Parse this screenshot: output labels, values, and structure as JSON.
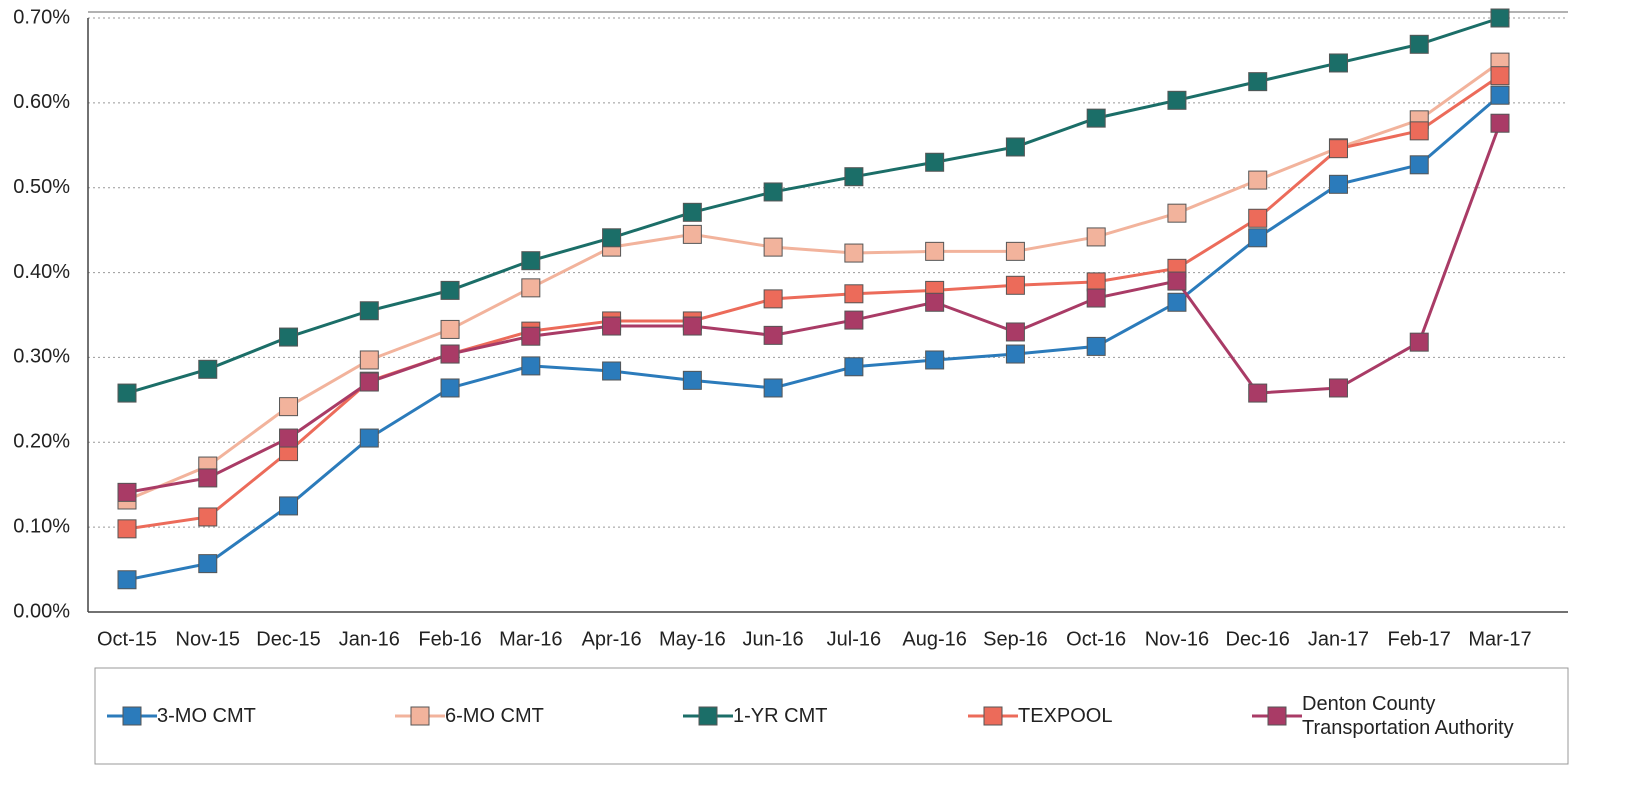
{
  "chart_data": {
    "type": "line",
    "categories": [
      "Oct-15",
      "Nov-15",
      "Dec-15",
      "Jan-16",
      "Feb-16",
      "Mar-16",
      "Apr-16",
      "May-16",
      "Jun-16",
      "Jul-16",
      "Aug-16",
      "Sep-16",
      "Oct-16",
      "Nov-16",
      "Dec-16",
      "Jan-17",
      "Feb-17",
      "Mar-17"
    ],
    "ylim": [
      0,
      0.7
    ],
    "yticks": [
      {
        "value": 0,
        "label": "0.00%"
      },
      {
        "value": 0.1,
        "label": "0.10%"
      },
      {
        "value": 0.2,
        "label": "0.20%"
      },
      {
        "value": 0.3,
        "label": "0.30%"
      },
      {
        "value": 0.4,
        "label": "0.40%"
      },
      {
        "value": 0.5,
        "label": "0.50%"
      },
      {
        "value": 0.6,
        "label": "0.60%"
      },
      {
        "value": 0.7,
        "label": "0.70%"
      }
    ],
    "grid": true,
    "legend": "bottom",
    "series": [
      {
        "name": "3-MO CMT",
        "color": "#2b7bbb",
        "values": [
          0.038,
          0.057,
          0.125,
          0.205,
          0.264,
          0.29,
          0.284,
          0.273,
          0.264,
          0.289,
          0.297,
          0.304,
          0.313,
          0.365,
          0.441,
          0.504,
          0.527,
          0.609
        ]
      },
      {
        "name": "6-MO CMT",
        "color": "#f2b39c",
        "values": [
          0.132,
          0.172,
          0.242,
          0.297,
          0.333,
          0.382,
          0.43,
          0.445,
          0.43,
          0.423,
          0.425,
          0.425,
          0.442,
          0.47,
          0.509,
          0.547,
          0.58,
          0.648
        ]
      },
      {
        "name": "1-YR CMT",
        "color": "#1b6e68",
        "values": [
          0.258,
          0.286,
          0.324,
          0.355,
          0.379,
          0.414,
          0.441,
          0.471,
          0.495,
          0.513,
          0.53,
          0.548,
          0.582,
          0.603,
          0.625,
          0.647,
          0.669,
          0.7
        ]
      },
      {
        "name": "TEXPOOL",
        "color": "#ec6b5a",
        "values": [
          0.098,
          0.112,
          0.189,
          0.272,
          0.304,
          0.331,
          0.343,
          0.343,
          0.369,
          0.375,
          0.379,
          0.385,
          0.389,
          0.405,
          0.464,
          0.546,
          0.567,
          0.632
        ]
      },
      {
        "name": "Denton County Transportation Authority",
        "color": "#a93b66",
        "values": [
          0.141,
          0.158,
          0.205,
          0.271,
          0.304,
          0.325,
          0.337,
          0.337,
          0.326,
          0.344,
          0.365,
          0.33,
          0.37,
          0.39,
          0.258,
          0.264,
          0.318,
          0.576
        ]
      }
    ]
  }
}
